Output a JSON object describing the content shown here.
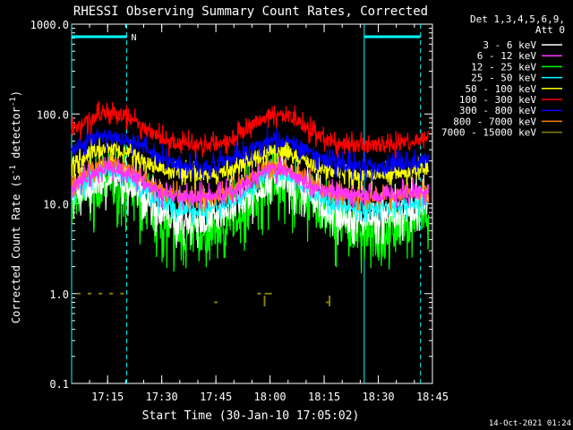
{
  "chart_data": {
    "type": "line",
    "title": "RHESSI Observing Summary Count Rates, Corrected",
    "xlabel": "Start Time (30-Jan-10 17:05:02)",
    "ylabel_main": "Corrected Count Rate (s",
    "ylabel_sup1": "-1",
    "ylabel_mid": " detector",
    "ylabel_sup2": "-1",
    "ylabel_end": ")",
    "footer": "14-Oct-2021 01:24",
    "x_ticks": [
      {
        "min": 15,
        "label": "17:15"
      },
      {
        "min": 30,
        "label": "17:30"
      },
      {
        "min": 45,
        "label": "17:45"
      },
      {
        "min": 60,
        "label": "18:00"
      },
      {
        "min": 75,
        "label": "18:15"
      },
      {
        "min": 90,
        "label": "18:30"
      },
      {
        "min": 105,
        "label": "18:45"
      }
    ],
    "x_range_minutes": [
      5.03,
      105
    ],
    "y_scale": "log",
    "ylim": [
      0.1,
      1000
    ],
    "y_ticks": [
      {
        "v": 0.1,
        "label": "0.1"
      },
      {
        "v": 1,
        "label": "1.0"
      },
      {
        "v": 10,
        "label": "10.0"
      },
      {
        "v": 100,
        "label": "100.0"
      },
      {
        "v": 1000,
        "label": "1000.0"
      }
    ],
    "legend_header": [
      "Det 1,3,4,5,6,9,",
      "Att 0"
    ],
    "series": [
      {
        "name": "3 - 6 keV",
        "color": "#ffffff",
        "x": [
          5,
          10,
          15,
          20,
          25,
          30,
          35,
          40,
          45,
          50,
          55,
          60,
          65,
          70,
          75,
          80,
          85,
          90,
          95,
          100,
          104
        ],
        "y": [
          12,
          16,
          19,
          17,
          12,
          8,
          6.5,
          6.5,
          7,
          9,
          13,
          18,
          17,
          13,
          9,
          7,
          6.5,
          7,
          8,
          9,
          11
        ]
      },
      {
        "name": "6 - 12 keV",
        "color": "#ff33ff",
        "x": [
          5,
          10,
          15,
          20,
          25,
          30,
          35,
          40,
          45,
          50,
          55,
          60,
          65,
          70,
          75,
          80,
          85,
          90,
          95,
          100,
          104
        ],
        "y": [
          15,
          21,
          26,
          23,
          17,
          13,
          12,
          12,
          12.5,
          14,
          18,
          24,
          23,
          17,
          14,
          13,
          12.5,
          12.5,
          13,
          13.5,
          14
        ]
      },
      {
        "name": "12 - 25 keV",
        "color": "#00ff00",
        "x": [
          5,
          10,
          15,
          20,
          25,
          30,
          35,
          40,
          45,
          50,
          55,
          60,
          65,
          70,
          75,
          80,
          85,
          90,
          95,
          100,
          104
        ],
        "y": [
          10,
          14,
          16,
          15,
          10,
          6,
          4.5,
          4.5,
          5,
          7,
          11,
          16,
          15,
          11,
          7,
          5.5,
          5,
          5,
          5.5,
          6.5,
          8
        ]
      },
      {
        "name": "25 - 50 keV",
        "color": "#00ffff",
        "x": [
          5,
          10,
          15,
          20,
          25,
          30,
          35,
          40,
          45,
          50,
          55,
          60,
          65,
          70,
          75,
          80,
          85,
          90,
          95,
          100,
          104
        ],
        "y": [
          13,
          19,
          24,
          21,
          14,
          10,
          8.5,
          8.5,
          9,
          11,
          16,
          22,
          21,
          15,
          11,
          9.5,
          9,
          9,
          9.5,
          10,
          11
        ]
      },
      {
        "name": "50 - 100 keV",
        "color": "#ffff00",
        "x": [
          5,
          10,
          15,
          20,
          25,
          30,
          35,
          40,
          45,
          50,
          55,
          60,
          65,
          70,
          75,
          80,
          85,
          90,
          95,
          100,
          104
        ],
        "y": [
          28,
          36,
          42,
          38,
          30,
          24,
          22,
          21,
          22,
          25,
          31,
          40,
          38,
          30,
          24,
          22,
          21,
          21,
          22,
          23,
          25
        ]
      },
      {
        "name": "100 - 300 keV",
        "color": "#ff0000",
        "x": [
          5,
          10,
          15,
          20,
          25,
          30,
          35,
          40,
          45,
          50,
          55,
          60,
          65,
          70,
          75,
          80,
          85,
          90,
          95,
          100,
          104
        ],
        "y": [
          65,
          85,
          105,
          95,
          70,
          52,
          46,
          45,
          46,
          55,
          75,
          100,
          95,
          70,
          52,
          46,
          44,
          44,
          45,
          50,
          58
        ]
      },
      {
        "name": "300 - 800 keV",
        "color": "#0000ff",
        "x": [
          5,
          10,
          15,
          20,
          25,
          30,
          35,
          40,
          45,
          50,
          55,
          60,
          65,
          70,
          75,
          80,
          85,
          90,
          95,
          100,
          104
        ],
        "y": [
          40,
          52,
          58,
          54,
          42,
          32,
          27,
          26,
          27,
          32,
          42,
          52,
          50,
          40,
          31,
          27,
          26,
          26,
          27,
          29,
          33
        ]
      },
      {
        "name": "800 - 7000 keV",
        "color": "#ff8000",
        "x": [
          5,
          10,
          15,
          20,
          25,
          30,
          35,
          40,
          45,
          50,
          55,
          60,
          65,
          70,
          75,
          80,
          85,
          90,
          95,
          100,
          104
        ],
        "y": [
          17,
          24,
          28,
          25,
          19,
          14,
          12,
          11.5,
          12,
          14.5,
          20,
          27,
          25,
          19,
          14,
          12.5,
          12,
          12,
          12.5,
          13,
          14
        ]
      },
      {
        "name": "7000 - 15000 keV",
        "color": "#888000",
        "x": [
          7,
          10,
          13,
          16,
          19,
          45,
          57,
          59,
          60,
          76
        ],
        "y": [
          1,
          1,
          1,
          1,
          1,
          0.8,
          1,
          1,
          1,
          0.8
        ]
      }
    ],
    "attenuator_segments": [
      {
        "start": 5.03,
        "end": 20.3
      },
      {
        "start": 86.1,
        "end": 101.7
      }
    ],
    "attenuator_marker": "N"
  }
}
